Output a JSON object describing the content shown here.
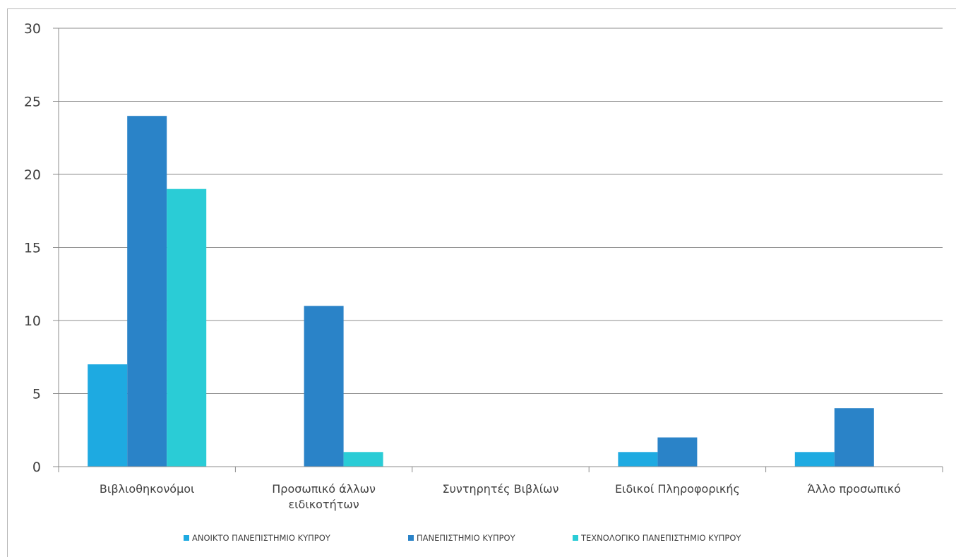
{
  "chart_data": {
    "type": "bar",
    "categories": [
      [
        "Βιβλιοθηκονόμοι"
      ],
      [
        "Προσωπικό άλλων",
        "ειδικοτήτων"
      ],
      [
        "Συντηρητές Βιβλίων"
      ],
      [
        "Ειδικοί Πληροφορικής"
      ],
      [
        "Άλλο προσωπικό"
      ]
    ],
    "series": [
      {
        "name": "ΑΝΟΙΚΤΟ ΠΑΝΕΠΙΣΤΗΜΙΟ ΚΥΠΡΟΥ",
        "color": "#1eaae1",
        "values": [
          7,
          0,
          0,
          1,
          1
        ]
      },
      {
        "name": "ΠΑΝΕΠΙΣΤΗΜΙΟ ΚΥΠΡΟΥ",
        "color": "#2a83c8",
        "values": [
          24,
          11,
          0,
          2,
          4
        ]
      },
      {
        "name": "ΤΕΧΝΟΛΟΓΙΚΟ ΠΑΝΕΠΙΣΤΗΜΙΟ ΚΥΠΡΟΥ",
        "color": "#2accd6",
        "values": [
          19,
          1,
          0,
          0,
          0
        ]
      }
    ],
    "ylim": [
      0,
      30
    ],
    "yticks": [
      0,
      5,
      10,
      15,
      20,
      25,
      30
    ],
    "grid": true,
    "legend_position": "bottom",
    "title": "",
    "xlabel": "",
    "ylabel": ""
  }
}
